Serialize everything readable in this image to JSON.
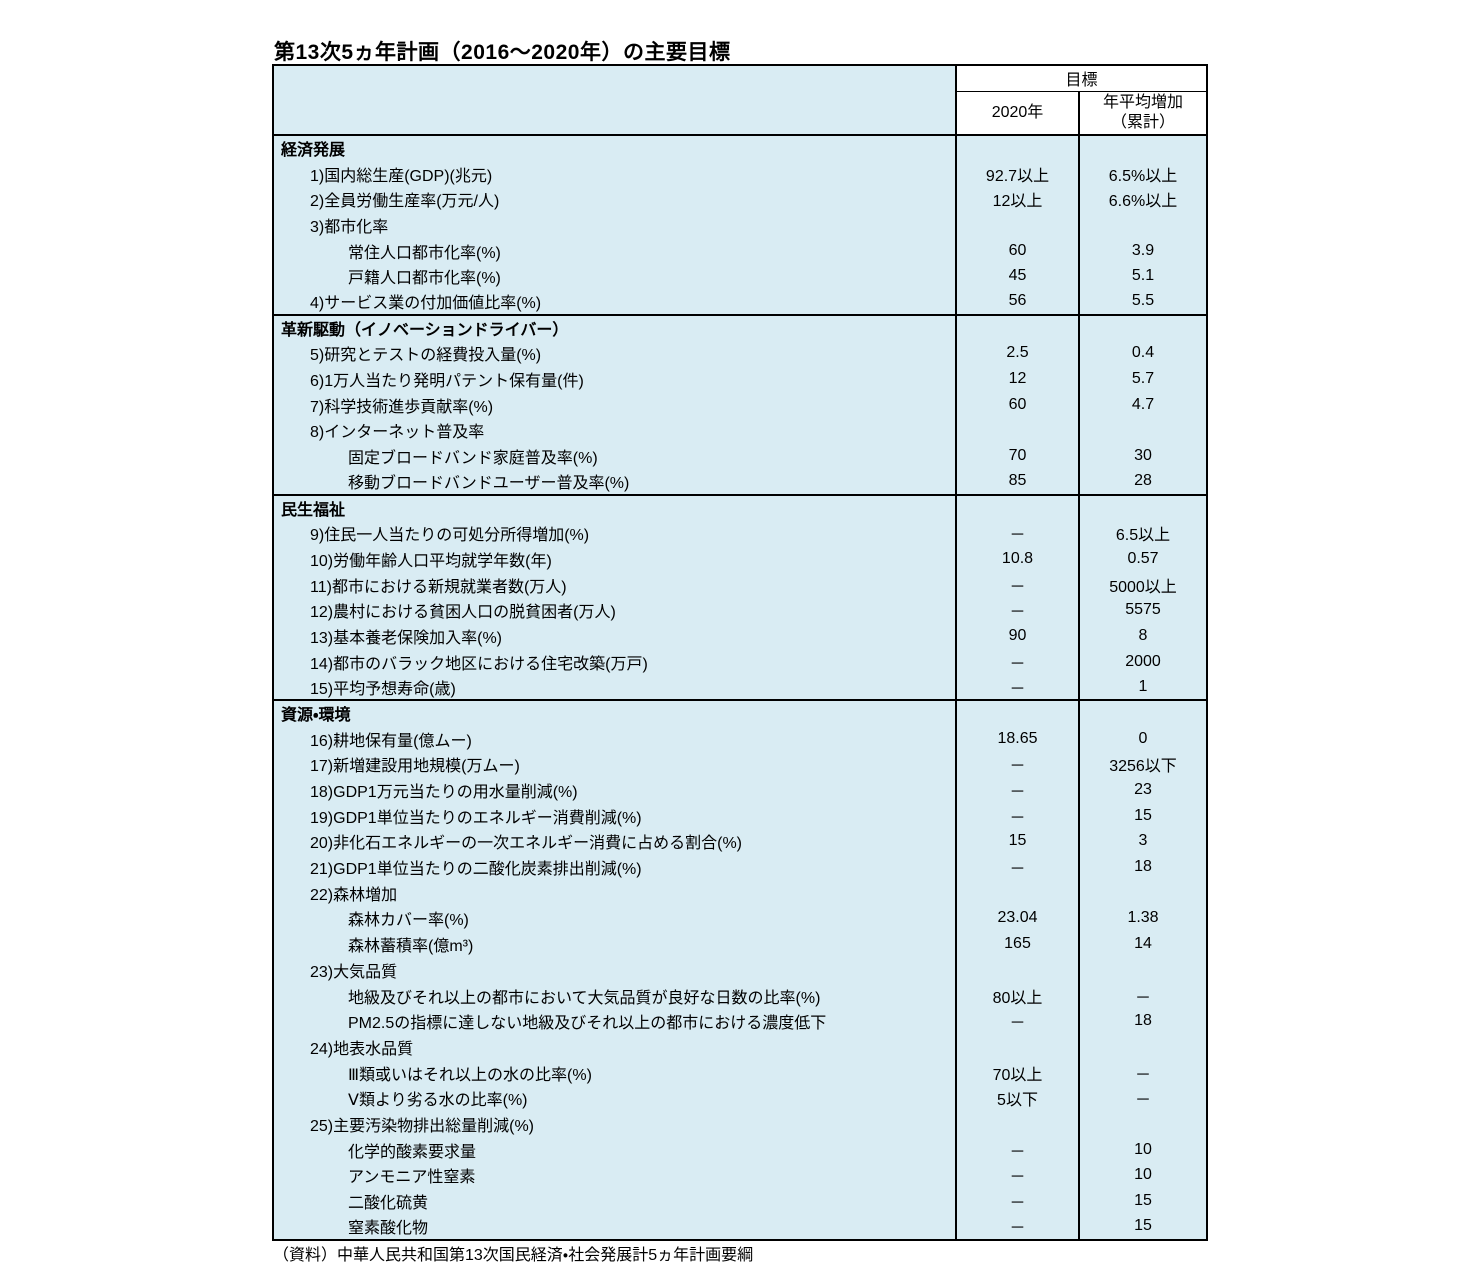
{
  "page": {
    "title": "第13次5ヵ年計画（2016～2020年）の主要目標",
    "source_note": "（資料）中華人民共和国第13次国民経済・社会発展計5ヵ年計画要綱"
  },
  "colors": {
    "table_bg": "#d9ecf3",
    "header_bg": "#ffffff",
    "border": "#000000",
    "text": "#000000"
  },
  "table": {
    "header": {
      "goal": "目標",
      "col_2020": "2020年",
      "col_avg_line1": "年平均増加",
      "col_avg_line2": "（累計）"
    },
    "sections": [
      {
        "name": "経済発展",
        "rows": [
          {
            "label": "1)国内総生産(GDP)(兆元)",
            "indent": 1,
            "target_2020": "92.7以上",
            "annual_avg": "6.5%以上"
          },
          {
            "label": "2)全員労働生産率(万元/人)",
            "indent": 1,
            "target_2020": "12以上",
            "annual_avg": "6.6%以上"
          },
          {
            "label": "3)都市化率",
            "indent": 1,
            "target_2020": "",
            "annual_avg": ""
          },
          {
            "label": "常住人口都市化率(%)",
            "indent": 2,
            "target_2020": "60",
            "annual_avg": "3.9"
          },
          {
            "label": "戸籍人口都市化率(%)",
            "indent": 2,
            "target_2020": "45",
            "annual_avg": "5.1"
          },
          {
            "label": "4)サービス業の付加価値比率(%)",
            "indent": 1,
            "target_2020": "56",
            "annual_avg": "5.5"
          }
        ]
      },
      {
        "name": "革新駆動（イノベーションドライバー）",
        "rows": [
          {
            "label": "5)研究とテストの経費投入量(%)",
            "indent": 1,
            "target_2020": "2.5",
            "annual_avg": "0.4"
          },
          {
            "label": "6)1万人当たり発明パテント保有量(件)",
            "indent": 1,
            "target_2020": "12",
            "annual_avg": "5.7"
          },
          {
            "label": "7)科学技術進歩貢献率(%)",
            "indent": 1,
            "target_2020": "60",
            "annual_avg": "4.7"
          },
          {
            "label": "8)インターネット普及率",
            "indent": 1,
            "target_2020": "",
            "annual_avg": ""
          },
          {
            "label": "固定ブロードバンド家庭普及率(%)",
            "indent": 2,
            "target_2020": "70",
            "annual_avg": "30"
          },
          {
            "label": "移動ブロードバンドユーザー普及率(%)",
            "indent": 2,
            "target_2020": "85",
            "annual_avg": "28"
          }
        ]
      },
      {
        "name": "民生福祉",
        "rows": [
          {
            "label": "9)住民一人当たりの可処分所得増加(%)",
            "indent": 1,
            "target_2020": "－",
            "annual_avg": "6.5以上"
          },
          {
            "label": "10)労働年齢人口平均就学年数(年)",
            "indent": 1,
            "target_2020": "10.8",
            "annual_avg": "0.57"
          },
          {
            "label": "11)都市における新規就業者数(万人)",
            "indent": 1,
            "target_2020": "－",
            "annual_avg": "5000以上"
          },
          {
            "label": "12)農村における貧困人口の脱貧困者(万人)",
            "indent": 1,
            "target_2020": "－",
            "annual_avg": "5575"
          },
          {
            "label": "13)基本養老保険加入率(%)",
            "indent": 1,
            "target_2020": "90",
            "annual_avg": "8"
          },
          {
            "label": "14)都市のバラック地区における住宅改築(万戸)",
            "indent": 1,
            "target_2020": "－",
            "annual_avg": "2000"
          },
          {
            "label": "15)平均予想寿命(歳)",
            "indent": 1,
            "target_2020": "－",
            "annual_avg": "1"
          }
        ]
      },
      {
        "name": "資源・環境",
        "rows": [
          {
            "label": "16)耕地保有量(億ムー)",
            "indent": 1,
            "target_2020": "18.65",
            "annual_avg": "0"
          },
          {
            "label": "17)新増建設用地規模(万ムー)",
            "indent": 1,
            "target_2020": "－",
            "annual_avg": "3256以下"
          },
          {
            "label": "18)GDP1万元当たりの用水量削減(%)",
            "indent": 1,
            "target_2020": "－",
            "annual_avg": "23"
          },
          {
            "label": "19)GDP1単位当たりのエネルギー消費削減(%)",
            "indent": 1,
            "target_2020": "－",
            "annual_avg": "15"
          },
          {
            "label": "20)非化石エネルギーの一次エネルギー消費に占める割合(%)",
            "indent": 1,
            "target_2020": "15",
            "annual_avg": "3"
          },
          {
            "label": "21)GDP1単位当たりの二酸化炭素排出削減(%)",
            "indent": 1,
            "target_2020": "－",
            "annual_avg": "18"
          },
          {
            "label": "22)森林増加",
            "indent": 1,
            "target_2020": "",
            "annual_avg": ""
          },
          {
            "label": "森林カバー率(%)",
            "indent": 2,
            "target_2020": "23.04",
            "annual_avg": "1.38"
          },
          {
            "label": "森林蓄積率(億m³)",
            "indent": 2,
            "target_2020": "165",
            "annual_avg": "14"
          },
          {
            "label": "23)大気品質",
            "indent": 1,
            "target_2020": "",
            "annual_avg": ""
          },
          {
            "label": "地級及びそれ以上の都市において大気品質が良好な日数の比率(%)",
            "indent": 2,
            "target_2020": "80以上",
            "annual_avg": "－"
          },
          {
            "label": "PM2.5の指標に達しない地級及びそれ以上の都市における濃度低下",
            "indent": 2,
            "target_2020": "－",
            "annual_avg": "18"
          },
          {
            "label": "24)地表水品質",
            "indent": 1,
            "target_2020": "",
            "annual_avg": ""
          },
          {
            "label": "Ⅲ類或いはそれ以上の水の比率(%)",
            "indent": 2,
            "target_2020": "70以上",
            "annual_avg": "－"
          },
          {
            "label": "Ⅴ類より劣る水の比率(%)",
            "indent": 2,
            "target_2020": "5以下",
            "annual_avg": "－"
          },
          {
            "label": "25)主要汚染物排出総量削減(%)",
            "indent": 1,
            "target_2020": "",
            "annual_avg": ""
          },
          {
            "label": "化学的酸素要求量",
            "indent": 2,
            "target_2020": "－",
            "annual_avg": "10"
          },
          {
            "label": "アンモニア性窒素",
            "indent": 2,
            "target_2020": "－",
            "annual_avg": "10"
          },
          {
            "label": "二酸化硫黄",
            "indent": 2,
            "target_2020": "－",
            "annual_avg": "15"
          },
          {
            "label": "窒素酸化物",
            "indent": 2,
            "target_2020": "－",
            "annual_avg": "15"
          }
        ]
      }
    ]
  }
}
